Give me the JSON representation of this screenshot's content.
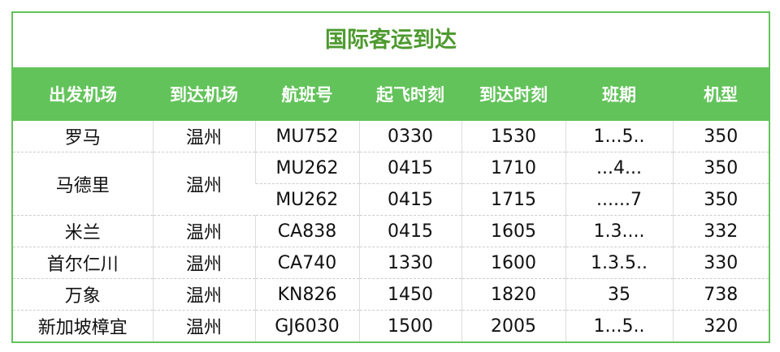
{
  "title": "国际客运到达",
  "colors": {
    "accent": "#62c35a",
    "title": "#4e9a2f"
  },
  "headers": [
    "出发机场",
    "到达机场",
    "航班号",
    "起飞时刻",
    "到达时刻",
    "班期",
    "机型"
  ],
  "rows": [
    {
      "from": "罗马",
      "to": "温州",
      "flight": "MU752",
      "dep": "0330",
      "arr": "1530",
      "days": "1...5..",
      "aircraft": "350"
    },
    {
      "from": "马德里",
      "to": "温州",
      "flight": "MU262",
      "dep": "0415",
      "arr": "1710",
      "days": "...4...",
      "aircraft": "350"
    },
    {
      "from": "马德里",
      "to": "温州",
      "flight": "MU262",
      "dep": "0415",
      "arr": "1715",
      "days": "......7",
      "aircraft": "350"
    },
    {
      "from": "米兰",
      "to": "温州",
      "flight": "CA838",
      "dep": "0415",
      "arr": "1605",
      "days": "1.3....",
      "aircraft": "332"
    },
    {
      "from": "首尔仁川",
      "to": "温州",
      "flight": "CA740",
      "dep": "1330",
      "arr": "1600",
      "days": "1.3.5..",
      "aircraft": "330"
    },
    {
      "from": "万象",
      "to": "温州",
      "flight": "KN826",
      "dep": "1450",
      "arr": "1820",
      "days": "35",
      "aircraft": "738"
    },
    {
      "from": "新加坡樟宜",
      "to": "温州",
      "flight": "GJ6030",
      "dep": "1500",
      "arr": "2005",
      "days": "1...5..",
      "aircraft": "320"
    }
  ]
}
